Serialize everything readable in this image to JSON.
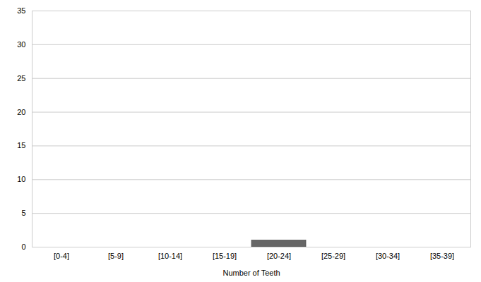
{
  "chart_data": {
    "type": "bar",
    "categories": [
      "[0-4]",
      "[5-9]",
      "[10-14]",
      "[15-19]",
      "[20-24]",
      "[25-29]",
      "[30-34]",
      "[35-39]"
    ],
    "values": [
      0,
      0,
      0,
      0,
      1,
      0,
      0,
      0
    ],
    "color": "#666666",
    "xlabel": "Number of Teeth",
    "ylim": [
      0,
      35
    ],
    "yticks": [
      0,
      5,
      10,
      15,
      20,
      25,
      30,
      35
    ],
    "grid": true
  }
}
